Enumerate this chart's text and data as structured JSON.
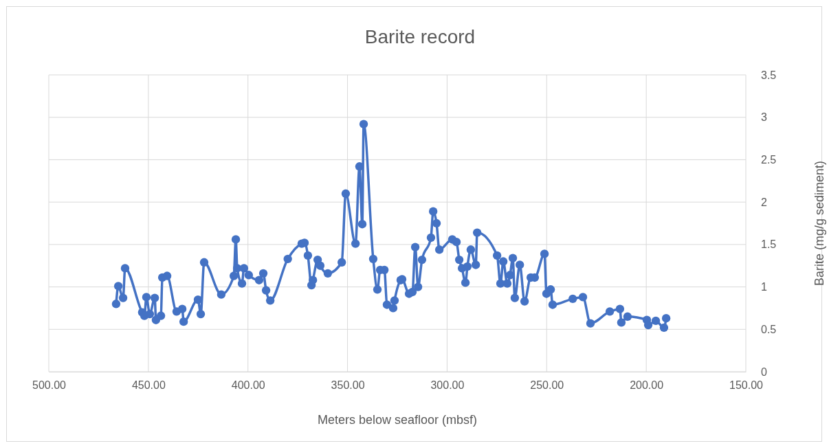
{
  "chart_data": {
    "type": "line",
    "title": "Barite record",
    "xlabel": "Meters below seafloor (mbsf)",
    "ylabel": "Barite (mg/g sediment)",
    "xlim": [
      500,
      150
    ],
    "xticks": [
      {
        "value": 500,
        "label": "500.00"
      },
      {
        "value": 450,
        "label": "450.00"
      },
      {
        "value": 400,
        "label": "400.00"
      },
      {
        "value": 350,
        "label": "350.00"
      },
      {
        "value": 300,
        "label": "300.00"
      },
      {
        "value": 250,
        "label": "250.00"
      },
      {
        "value": 200,
        "label": "200.00"
      },
      {
        "value": 150,
        "label": "150.00"
      }
    ],
    "ylim": [
      0,
      3.5
    ],
    "yticks": [
      0,
      0.5,
      1,
      1.5,
      2,
      2.5,
      3,
      3.5
    ],
    "grid": true,
    "marker": "circle",
    "line_style": "solid",
    "series": [
      {
        "color": "#4472c4",
        "x": [
          466.2,
          465.1,
          462.7,
          461.7,
          453.1,
          452.0,
          451.0,
          449.3,
          446.8,
          446.2,
          443.7,
          443.0,
          440.6,
          435.8,
          433.0,
          432.3,
          425.1,
          423.7,
          422.0,
          413.4,
          407.1,
          406.1,
          405.4,
          403.0,
          402.0,
          399.6,
          394.4,
          392.3,
          390.9,
          388.8,
          380.0,
          373.0,
          371.6,
          369.9,
          368.1,
          367.4,
          365.0,
          363.7,
          359.9,
          352.9,
          350.9,
          346.0,
          344.0,
          342.6,
          341.9,
          337.1,
          335.0,
          333.6,
          331.5,
          330.2,
          327.1,
          326.4,
          323.3,
          322.6,
          319.1,
          317.4,
          316.0,
          314.6,
          312.6,
          308.1,
          307.0,
          305.3,
          303.9,
          297.4,
          295.3,
          293.9,
          292.5,
          290.8,
          289.8,
          288.1,
          285.6,
          284.9,
          274.9,
          273.2,
          271.8,
          269.8,
          268.4,
          267.0,
          266.0,
          263.5,
          261.1,
          258.0,
          256.0,
          251.1,
          250.1,
          248.0,
          247.0,
          236.9,
          231.8,
          228.0,
          218.3,
          213.2,
          212.5,
          209.4,
          199.7,
          199.0,
          195.2,
          191.1,
          190.0
        ],
        "values": [
          0.8,
          1.01,
          0.87,
          1.22,
          0.7,
          0.66,
          0.88,
          0.68,
          0.87,
          0.61,
          0.66,
          1.11,
          1.13,
          0.71,
          0.74,
          0.59,
          0.85,
          0.68,
          1.29,
          0.91,
          1.13,
          1.56,
          1.22,
          1.04,
          1.22,
          1.14,
          1.08,
          1.16,
          0.96,
          0.84,
          1.33,
          1.51,
          1.52,
          1.37,
          1.02,
          1.08,
          1.32,
          1.25,
          1.16,
          1.29,
          2.1,
          1.51,
          2.42,
          1.74,
          2.92,
          1.33,
          0.97,
          1.2,
          1.2,
          0.79,
          0.75,
          0.84,
          1.08,
          1.09,
          0.92,
          0.94,
          1.47,
          1.0,
          1.32,
          1.58,
          1.89,
          1.75,
          1.44,
          1.56,
          1.53,
          1.32,
          1.22,
          1.05,
          1.24,
          1.44,
          1.26,
          1.64,
          1.37,
          1.04,
          1.3,
          1.04,
          1.14,
          1.34,
          0.87,
          1.26,
          0.83,
          1.11,
          1.11,
          1.39,
          0.92,
          0.97,
          0.79,
          0.86,
          0.88,
          0.57,
          0.71,
          0.74,
          0.58,
          0.65,
          0.61,
          0.55,
          0.6,
          0.52,
          0.63
        ]
      }
    ]
  }
}
